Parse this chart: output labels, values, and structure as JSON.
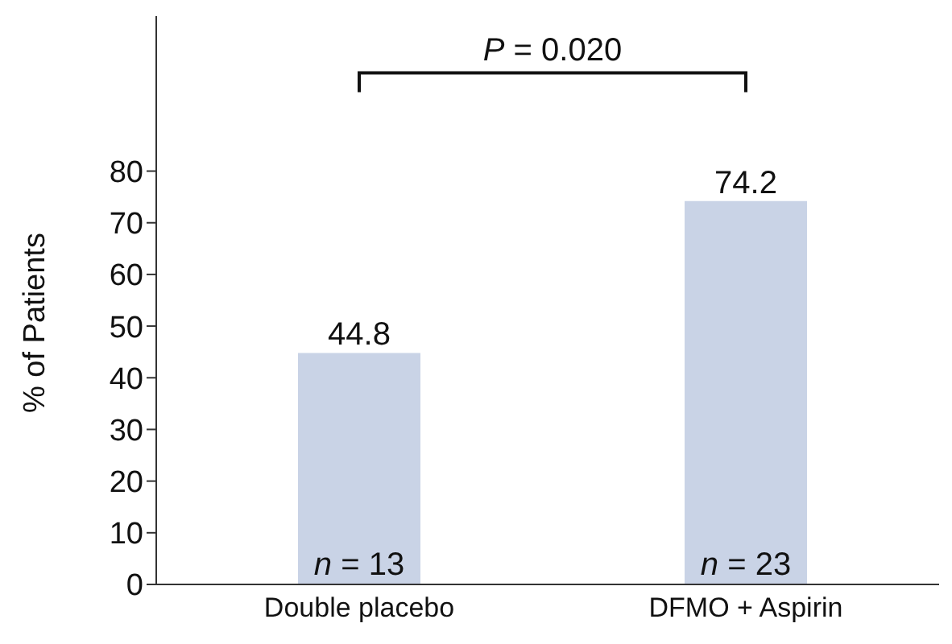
{
  "chart_data": {
    "type": "bar",
    "ylabel": "% of Patients",
    "categories": [
      "Double placebo",
      "DFMO + Aspirin"
    ],
    "values": [
      44.8,
      74.2
    ],
    "color": "#c9d3e6",
    "data_labels": true,
    "ylim": [
      0,
      110
    ],
    "yticks": [
      0,
      10,
      20,
      30,
      40,
      50,
      60,
      70,
      80
    ],
    "annotations": [
      "P = 0.020",
      "n = 13",
      "n = 23"
    ]
  }
}
